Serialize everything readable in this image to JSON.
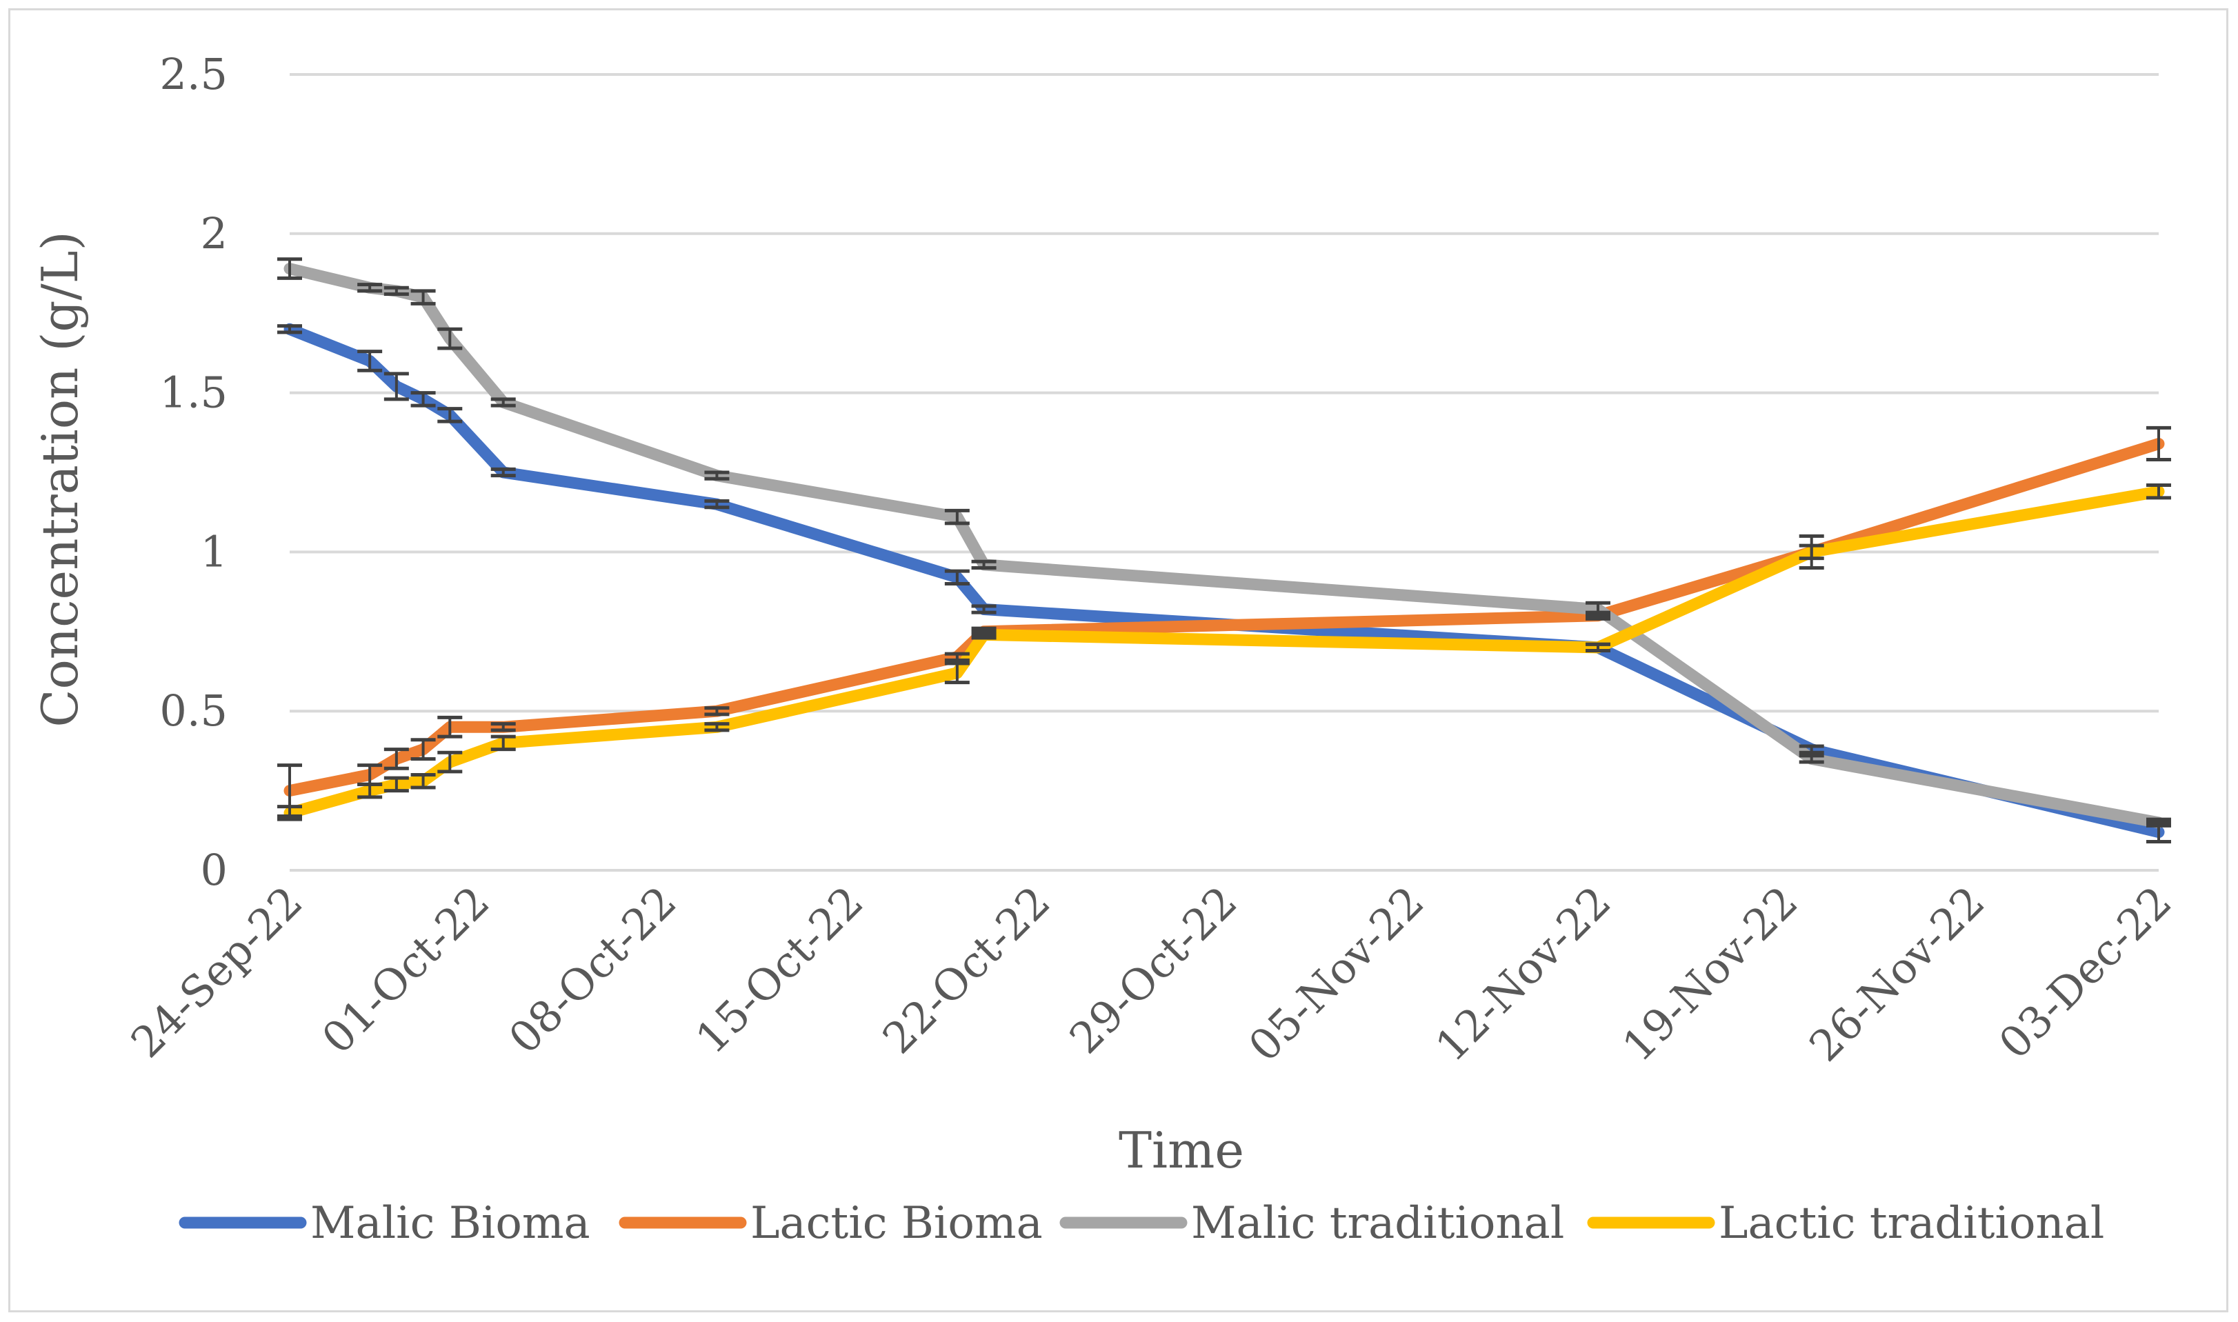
{
  "chart_data": {
    "type": "line",
    "title": "",
    "xlabel": "Time",
    "ylabel": "Concentration (g/L)",
    "ylim": [
      0,
      2.5
    ],
    "yticks": [
      "0",
      "0.5",
      "1",
      "1.5",
      "2",
      "2.5"
    ],
    "x_axis_start": "2022-09-24",
    "x_axis_end": "2022-12-03",
    "xticks": [
      {
        "label": "24-Sep-22",
        "day": 0
      },
      {
        "label": "01-Oct-22",
        "day": 7
      },
      {
        "label": "08-Oct-22",
        "day": 14
      },
      {
        "label": "15-Oct-22",
        "day": 21
      },
      {
        "label": "22-Oct-22",
        "day": 28
      },
      {
        "label": "29-Oct-22",
        "day": 35
      },
      {
        "label": "05-Nov-22",
        "day": 42
      },
      {
        "label": "12-Nov-22",
        "day": 49
      },
      {
        "label": "19-Nov-22",
        "day": 56
      },
      {
        "label": "26-Nov-22",
        "day": 63
      },
      {
        "label": "03-Dec-22",
        "day": 70
      }
    ],
    "legend_position": "bottom",
    "grid": true,
    "series": [
      {
        "name": "Malic Bioma",
        "color": "#4472c4",
        "x": [
          0,
          3,
          4,
          5,
          6,
          8,
          16,
          25,
          26,
          49,
          57,
          70
        ],
        "y": [
          1.7,
          1.6,
          1.52,
          1.48,
          1.43,
          1.25,
          1.15,
          0.92,
          0.82,
          0.7,
          0.38,
          0.12
        ],
        "err": [
          0.01,
          0.03,
          0.04,
          0.02,
          0.02,
          0.01,
          0.01,
          0.02,
          0.01,
          0.01,
          0.01,
          0.03
        ]
      },
      {
        "name": "Lactic Bioma",
        "color": "#ed7d31",
        "x": [
          0,
          3,
          4,
          5,
          6,
          8,
          16,
          25,
          26,
          49,
          57,
          70
        ],
        "y": [
          0.25,
          0.3,
          0.35,
          0.38,
          0.45,
          0.45,
          0.5,
          0.67,
          0.75,
          0.8,
          1.0,
          1.34
        ],
        "err": [
          0.08,
          0.03,
          0.03,
          0.03,
          0.03,
          0.01,
          0.01,
          0.01,
          0.01,
          0.01,
          0.02,
          0.05
        ]
      },
      {
        "name": "Malic traditional",
        "color": "#a5a5a5",
        "x": [
          0,
          3,
          4,
          5,
          6,
          8,
          16,
          25,
          26,
          49,
          57,
          70
        ],
        "y": [
          1.89,
          1.83,
          1.82,
          1.8,
          1.67,
          1.47,
          1.24,
          1.11,
          0.96,
          0.82,
          0.35,
          0.15
        ],
        "err": [
          0.03,
          0.01,
          0.01,
          0.02,
          0.03,
          0.01,
          0.01,
          0.02,
          0.01,
          0.02,
          0.01,
          0.01
        ]
      },
      {
        "name": "Lactic traditional",
        "color": "#ffc000",
        "x": [
          0,
          3,
          4,
          5,
          6,
          8,
          16,
          25,
          26,
          49,
          57,
          70
        ],
        "y": [
          0.18,
          0.25,
          0.27,
          0.28,
          0.34,
          0.4,
          0.45,
          0.62,
          0.74,
          0.7,
          1.0,
          1.19
        ],
        "err": [
          0.02,
          0.02,
          0.02,
          0.02,
          0.03,
          0.02,
          0.01,
          0.03,
          0.01,
          0.01,
          0.05,
          0.02
        ]
      }
    ]
  }
}
